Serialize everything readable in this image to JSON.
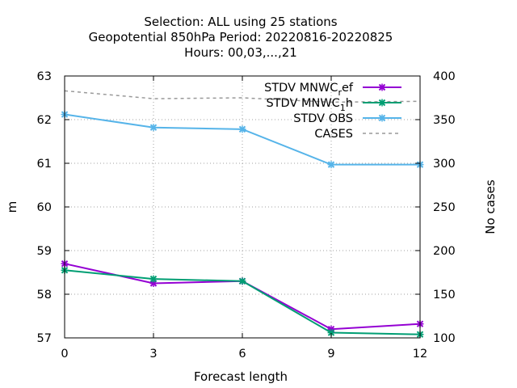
{
  "chart_data": {
    "type": "line",
    "title_lines": [
      "Selection: ALL using    25 stations",
      "Geopotential 850hPa   Period: 20220816-20220825",
      "Hours:  00,03,...,21"
    ],
    "xlabel": "Forecast length",
    "ylabel": "m",
    "y2label": "No cases",
    "x": [
      0,
      3,
      6,
      9,
      12
    ],
    "xlim": [
      0,
      12
    ],
    "ylim": [
      57,
      63
    ],
    "y2lim": [
      100,
      400
    ],
    "x_ticks": [
      "0",
      "3",
      "6",
      "9",
      "12"
    ],
    "y_ticks": [
      "57",
      "58",
      "59",
      "60",
      "61",
      "62",
      "63"
    ],
    "y2_ticks": [
      "100",
      "150",
      "200",
      "250",
      "300",
      "350",
      "400"
    ],
    "grid": true,
    "legend_position": "top-right",
    "series": [
      {
        "name": "STDV MNWC_ref",
        "legend_text": [
          "STDV MNWC",
          "r",
          "ef"
        ],
        "axis": "y",
        "color": "#9400d3",
        "marker": "x",
        "dashed": false,
        "values": [
          58.7,
          58.25,
          58.3,
          57.2,
          57.32
        ]
      },
      {
        "name": "STDV MNWC_1_h",
        "legend_text": [
          "STDV MNWC",
          "1",
          "h"
        ],
        "axis": "y",
        "color": "#009e73",
        "marker": "x",
        "dashed": false,
        "values": [
          58.55,
          58.35,
          58.3,
          57.12,
          57.08
        ]
      },
      {
        "name": "STDV OBS",
        "legend_text": [
          "STDV OBS",
          "",
          ""
        ],
        "axis": "y",
        "color": "#56b4e9",
        "marker": "x",
        "dashed": false,
        "values": [
          62.12,
          61.82,
          61.78,
          60.97,
          60.97
        ]
      },
      {
        "name": "CASES",
        "legend_text": [
          "CASES",
          "",
          ""
        ],
        "axis": "y2",
        "color": "#999999",
        "marker": "",
        "dashed": true,
        "values": [
          383,
          374,
          375,
          370,
          371
        ]
      }
    ]
  }
}
